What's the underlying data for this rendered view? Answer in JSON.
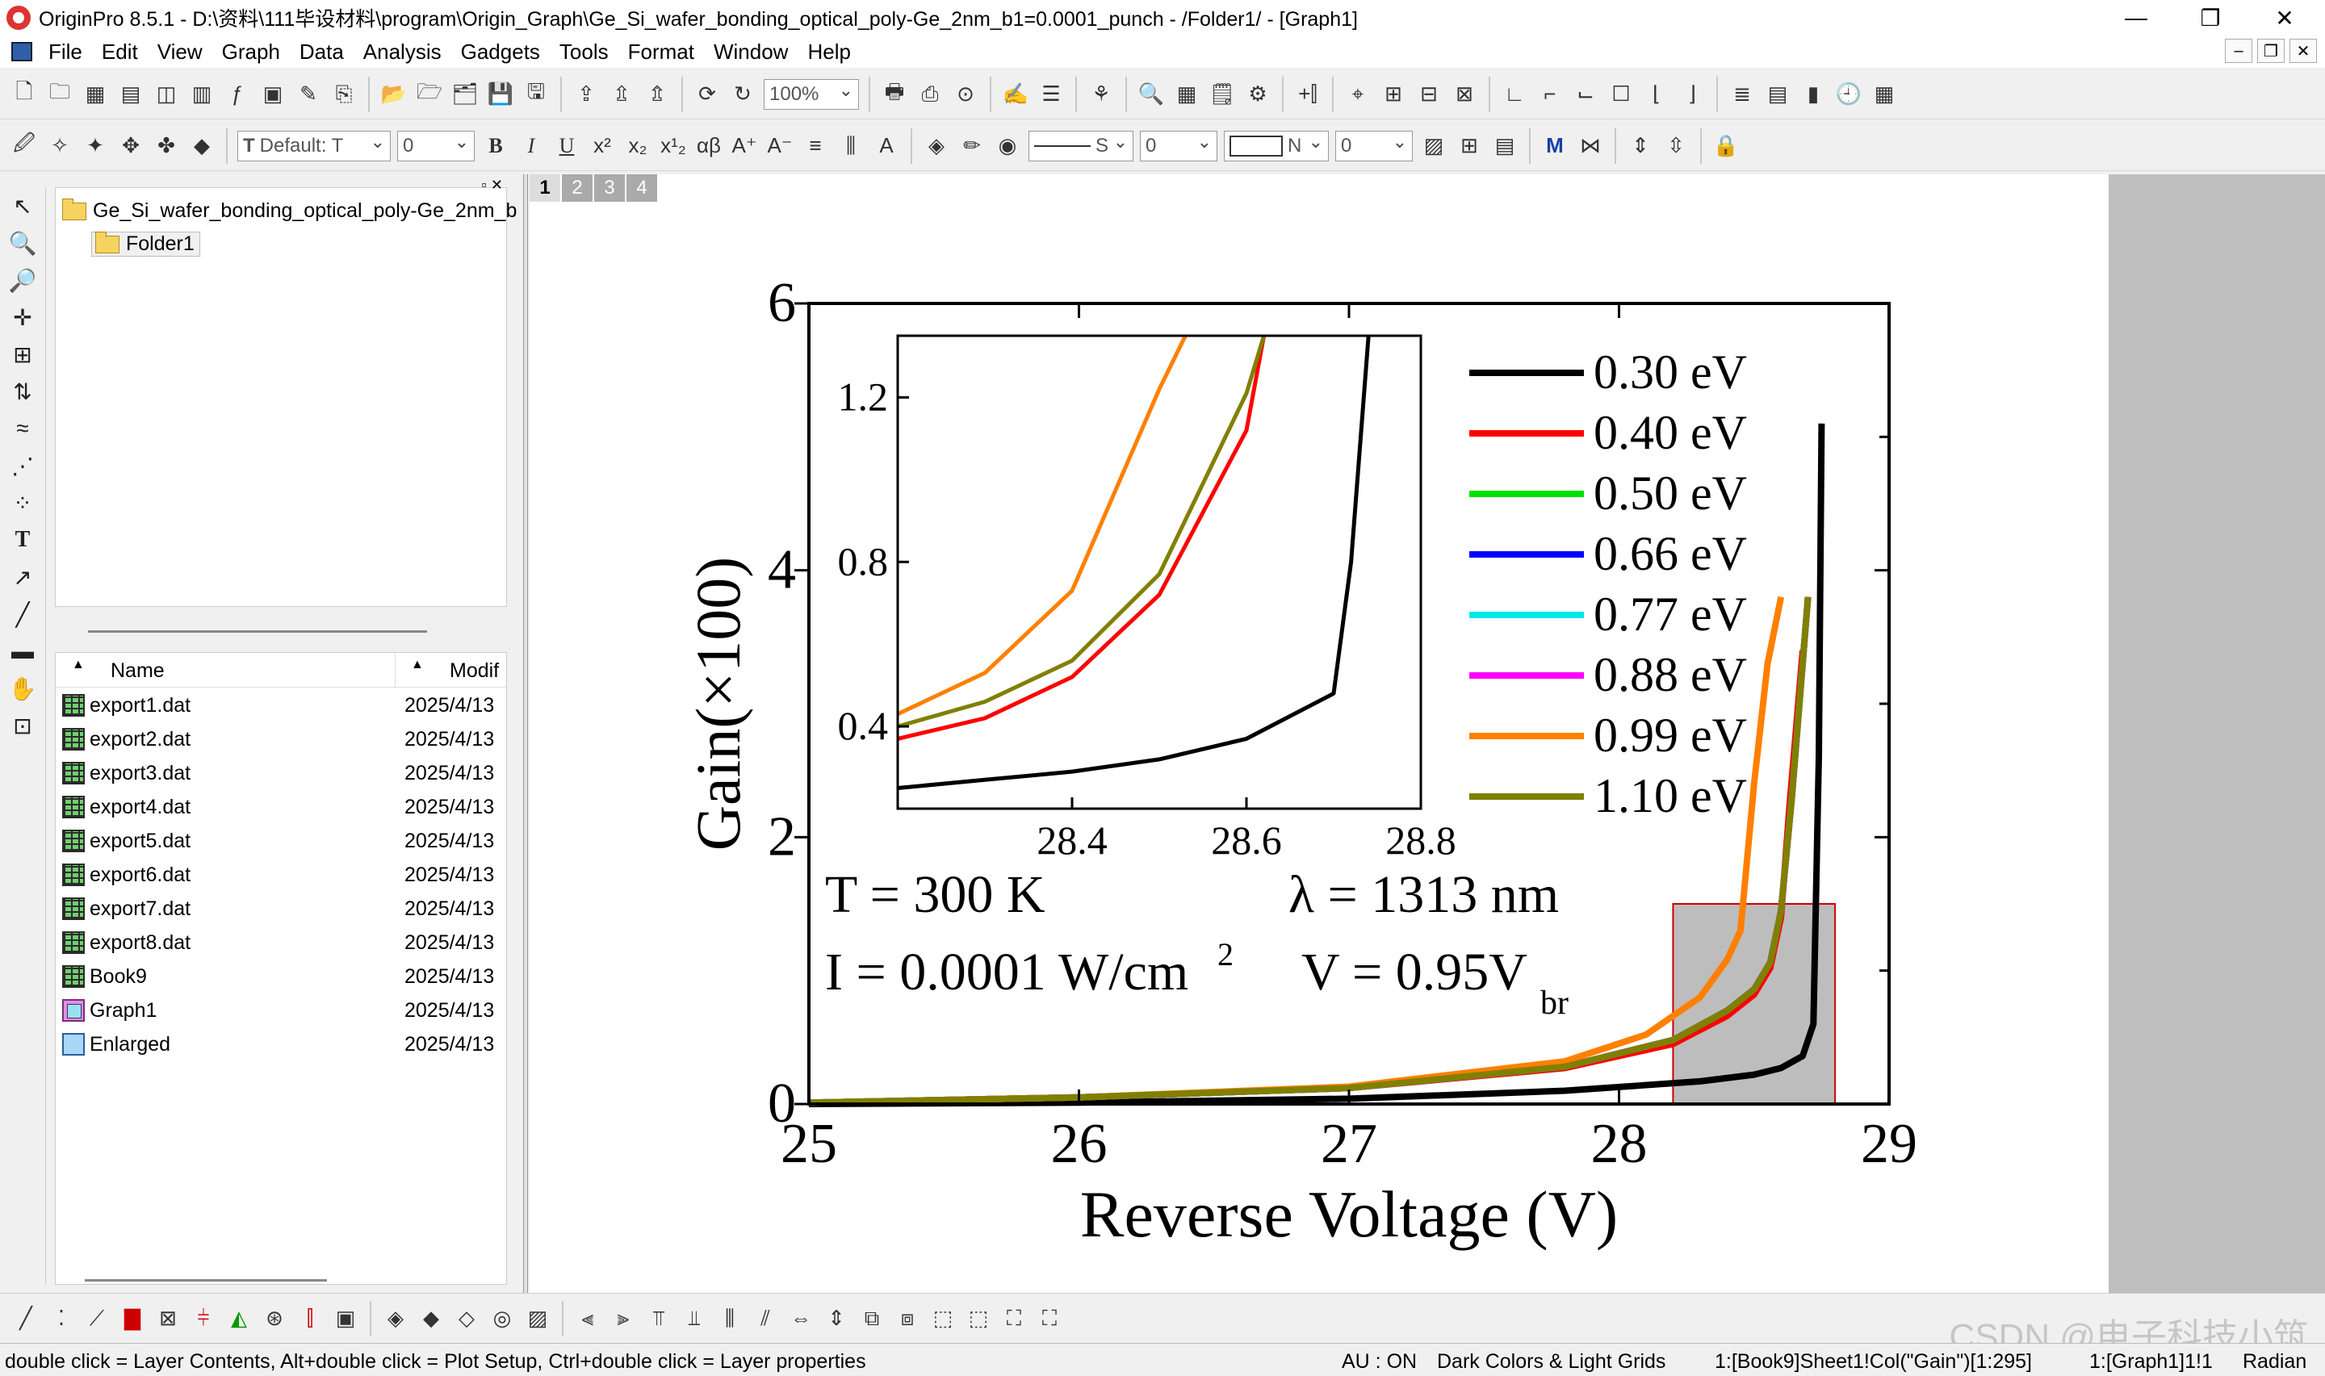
{
  "window": {
    "title": "OriginPro 8.5.1 - D:\\资料\\111毕设材料\\program\\Origin_Graph\\Ge_Si_wafer_bonding_optical_poly-Ge_2nm_b1=0.0001_punch - /Folder1/ - [Graph1]",
    "minimize": "—",
    "restore": "❐",
    "close": "✕"
  },
  "menu": [
    "File",
    "Edit",
    "View",
    "Graph",
    "Data",
    "Analysis",
    "Gadgets",
    "Tools",
    "Format",
    "Window",
    "Help"
  ],
  "toolbar1": {
    "zoom": "100%"
  },
  "toolbar2": {
    "font": "Default: T",
    "font_size": "0",
    "bold": "B",
    "italic": "I",
    "underline": "U",
    "line_style": "S",
    "line_width": "0",
    "fill_pattern": "N",
    "fill_size": "0",
    "greek": "αβ"
  },
  "project_explorer": {
    "root": "Ge_Si_wafer_bonding_optical_poly-Ge_2nm_b",
    "folder": "Folder1",
    "col_name": "Name",
    "col_modified": "Modif",
    "items": [
      {
        "name": "export1.dat",
        "date": "2025/4/13",
        "icon": "workbook-icon"
      },
      {
        "name": "export2.dat",
        "date": "2025/4/13",
        "icon": "workbook-icon"
      },
      {
        "name": "export3.dat",
        "date": "2025/4/13",
        "icon": "workbook-icon"
      },
      {
        "name": "export4.dat",
        "date": "2025/4/13",
        "icon": "workbook-icon"
      },
      {
        "name": "export5.dat",
        "date": "2025/4/13",
        "icon": "workbook-icon"
      },
      {
        "name": "export6.dat",
        "date": "2025/4/13",
        "icon": "workbook-icon"
      },
      {
        "name": "export7.dat",
        "date": "2025/4/13",
        "icon": "workbook-icon"
      },
      {
        "name": "export8.dat",
        "date": "2025/4/13",
        "icon": "workbook-icon"
      },
      {
        "name": "Book9",
        "date": "2025/4/13",
        "icon": "workbook-icon"
      },
      {
        "name": "Graph1",
        "date": "2025/4/13",
        "icon": "graph-icon"
      },
      {
        "name": "Enlarged",
        "date": "2025/4/13",
        "icon": "layout-icon"
      }
    ]
  },
  "graph_tabs": [
    "1",
    "2",
    "3",
    "4"
  ],
  "chart_data": {
    "type": "line",
    "xlabel": "Reverse Voltage (V)",
    "ylabel": "Gain(×100)",
    "xlim": [
      25,
      29
    ],
    "ylim": [
      0,
      6
    ],
    "xticks": [
      "25",
      "26",
      "27",
      "28",
      "29"
    ],
    "yticks": [
      "0",
      "2",
      "4",
      "6"
    ],
    "legend_position": "top-right",
    "series": [
      {
        "name": "0.30 eV",
        "color": "#000000",
        "x": [
          25,
          26,
          27,
          27.8,
          28.3,
          28.5,
          28.6,
          28.68,
          28.72,
          28.74,
          28.75
        ],
        "y": [
          0.0,
          0.01,
          0.04,
          0.1,
          0.17,
          0.22,
          0.27,
          0.36,
          0.6,
          2.6,
          5.1
        ]
      },
      {
        "name": "0.40 eV",
        "color": "#ff0000",
        "x": [
          25,
          26,
          27,
          27.8,
          28.2,
          28.4,
          28.5,
          28.56,
          28.6,
          28.63,
          28.68
        ],
        "y": [
          0.01,
          0.05,
          0.12,
          0.27,
          0.45,
          0.66,
          0.82,
          1.02,
          1.4,
          2.2,
          3.4
        ]
      },
      {
        "name": "0.50 eV",
        "color": "#00e000",
        "x": [
          25,
          26,
          27,
          27.8,
          28.2,
          28.4,
          28.5,
          28.56,
          28.6,
          28.64,
          28.7
        ],
        "y": [
          0.01,
          0.05,
          0.12,
          0.28,
          0.48,
          0.7,
          0.86,
          1.06,
          1.45,
          2.3,
          3.8
        ]
      },
      {
        "name": "0.66 eV",
        "color": "#0000ff",
        "x": [
          25,
          26,
          27,
          27.8,
          28.2,
          28.4,
          28.5,
          28.56,
          28.6,
          28.64,
          28.7
        ],
        "y": [
          0.01,
          0.05,
          0.12,
          0.28,
          0.48,
          0.7,
          0.86,
          1.06,
          1.45,
          2.3,
          3.8
        ]
      },
      {
        "name": "0.77 eV",
        "color": "#00e8e8",
        "x": [
          25,
          26,
          27,
          27.8,
          28.2,
          28.4,
          28.5,
          28.56,
          28.6,
          28.64,
          28.7
        ],
        "y": [
          0.01,
          0.05,
          0.12,
          0.28,
          0.48,
          0.7,
          0.86,
          1.06,
          1.45,
          2.3,
          3.8
        ]
      },
      {
        "name": "0.88 eV",
        "color": "#ff00ff",
        "x": [
          25,
          26,
          27,
          27.8,
          28.2,
          28.4,
          28.5,
          28.56,
          28.6,
          28.64,
          28.7
        ],
        "y": [
          0.01,
          0.05,
          0.12,
          0.28,
          0.48,
          0.7,
          0.86,
          1.06,
          1.45,
          2.3,
          3.8
        ]
      },
      {
        "name": "0.99 eV",
        "color": "#ff8000",
        "x": [
          25,
          26,
          27,
          27.8,
          28.1,
          28.3,
          28.4,
          28.45,
          28.5,
          28.55,
          28.6
        ],
        "y": [
          0.01,
          0.05,
          0.13,
          0.32,
          0.52,
          0.8,
          1.08,
          1.3,
          2.4,
          3.3,
          3.8
        ]
      },
      {
        "name": "1.10 eV",
        "color": "#808000",
        "x": [
          25,
          26,
          27,
          27.8,
          28.2,
          28.4,
          28.5,
          28.56,
          28.6,
          28.64,
          28.7
        ],
        "y": [
          0.01,
          0.05,
          0.12,
          0.28,
          0.48,
          0.7,
          0.86,
          1.06,
          1.45,
          2.3,
          3.8
        ]
      }
    ],
    "zoom_box": {
      "x": [
        28.2,
        28.8
      ],
      "y": [
        0,
        1.5
      ]
    },
    "annotations": {
      "temperature": "T = 300 K",
      "wavelength": "λ = 1313 nm",
      "intensity": "I = 0.0001 W/cm",
      "intensity_exp": "2",
      "voltage": "V = 0.95V",
      "voltage_sub": "br"
    },
    "inset": {
      "xlim": [
        28.2,
        28.8
      ],
      "ylim": [
        0.2,
        1.35
      ],
      "xticks": [
        "28.4",
        "28.6",
        "28.8"
      ],
      "yticks": [
        "0.4",
        "0.8",
        "1.2"
      ],
      "series": [
        {
          "color": "#000000",
          "x": [
            28.2,
            28.3,
            28.4,
            28.5,
            28.6,
            28.7,
            28.72,
            28.74
          ],
          "y": [
            0.25,
            0.27,
            0.29,
            0.32,
            0.37,
            0.48,
            0.8,
            1.35
          ]
        },
        {
          "color": "#ff0000",
          "x": [
            28.2,
            28.3,
            28.4,
            28.5,
            28.6,
            28.62
          ],
          "y": [
            0.37,
            0.42,
            0.52,
            0.72,
            1.12,
            1.35
          ]
        },
        {
          "color": "#808000",
          "x": [
            28.2,
            28.3,
            28.4,
            28.5,
            28.6,
            28.62
          ],
          "y": [
            0.4,
            0.46,
            0.56,
            0.77,
            1.21,
            1.35
          ]
        },
        {
          "color": "#ff8000",
          "x": [
            28.2,
            28.3,
            28.4,
            28.5,
            28.53
          ],
          "y": [
            0.43,
            0.53,
            0.73,
            1.22,
            1.35
          ]
        }
      ]
    }
  },
  "status": {
    "hint": "double click = Layer Contents, Alt+double click = Plot Setup, Ctrl+double click = Layer properties",
    "au": "AU : ON",
    "theme": "Dark Colors & Light Grids",
    "active_data": "1:[Book9]Sheet1!Col(\"Gain\")[1:295]",
    "active_graph": "1:[Graph1]1!1",
    "angle": "Radian"
  },
  "watermark": "CSDN @电子科技小筑"
}
